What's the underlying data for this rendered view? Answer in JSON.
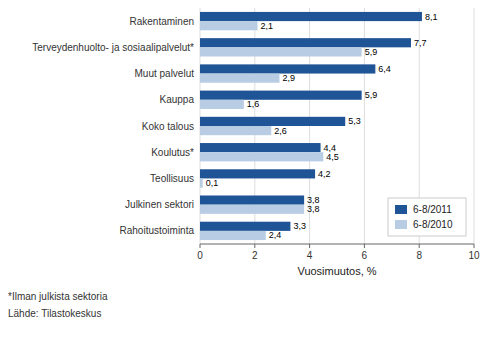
{
  "chart_data": {
    "type": "bar",
    "orientation": "horizontal",
    "categories": [
      "Rakentaminen",
      "Terveydenhuolto- ja sosiaalipalvelut*",
      "Muut palvelut",
      "Kauppa",
      "Koko talous",
      "Koulutus*",
      "Teollisuus",
      "Julkinen sektori",
      "Rahoitustoiminta"
    ],
    "series": [
      {
        "name": "6-8/2011",
        "color": "#1F5496",
        "values": [
          8.1,
          7.7,
          6.4,
          5.9,
          5.3,
          4.4,
          4.2,
          3.8,
          3.3
        ],
        "value_labels": [
          "8,1",
          "7,7",
          "6,4",
          "5,9",
          "5,3",
          "4,4",
          "4,2",
          "3,8",
          "3,3"
        ]
      },
      {
        "name": "6-8/2010",
        "color": "#B8CCE4",
        "values": [
          2.1,
          5.9,
          2.9,
          1.6,
          2.6,
          4.5,
          0.1,
          3.8,
          2.4
        ],
        "value_labels": [
          "2,1",
          "5,9",
          "2,9",
          "1,6",
          "2,6",
          "4,5",
          "0,1",
          "3,8",
          "2,4"
        ]
      }
    ],
    "xlabel": "Vuosimuutos, %",
    "xlim": [
      0,
      10
    ],
    "xticks": [
      0,
      2,
      4,
      6,
      8,
      10
    ],
    "grid": true,
    "legend": "lower right",
    "data_labels": true,
    "annotations": [
      "*Ilman julkista sektoria",
      "Lähde: Tilastokeskus"
    ]
  }
}
